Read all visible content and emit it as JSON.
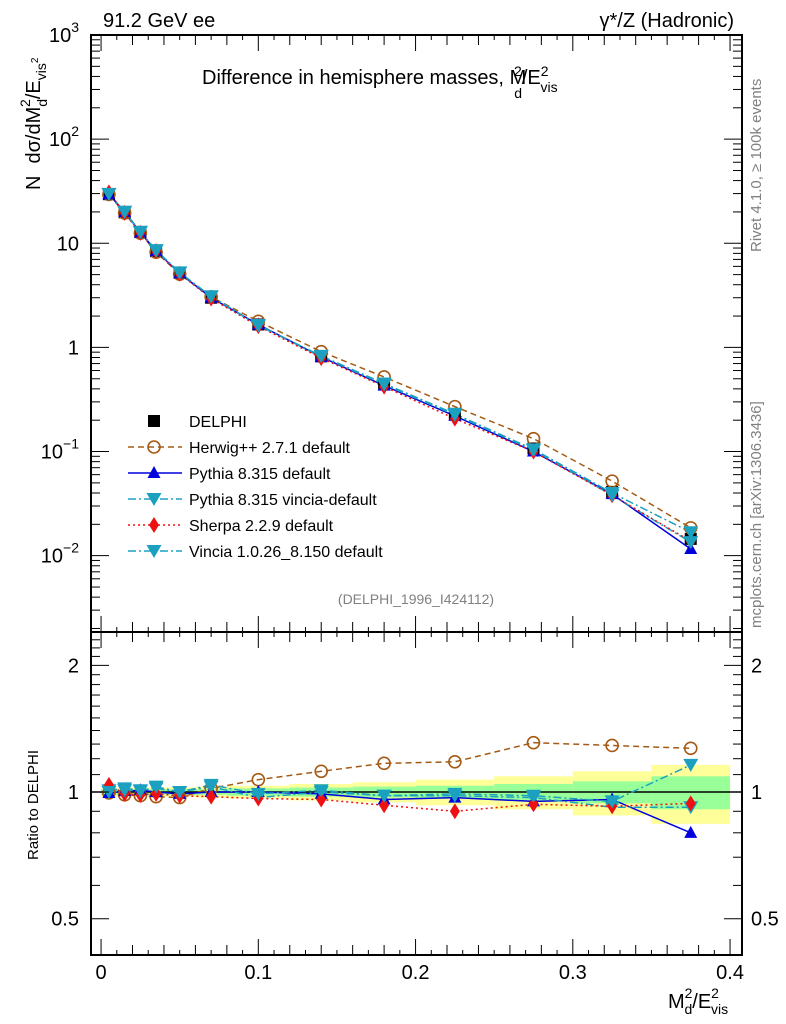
{
  "chart_data": [
    {
      "type": "line",
      "panel": "main",
      "title": "Difference in hemisphere masses, M_d^2/E_vis^2",
      "top_left_label": "91.2 GeV ee",
      "top_right_label": "γ*/Z (Hadronic)",
      "analysis_label": "(DELPHI_1996_I424112)",
      "side_label_top": "Rivet 4.1.0, ≥ 100k events",
      "side_label_bottom": "mcplots.cern.ch [arXiv:1306.3436]",
      "ylabel": "N  dσ/dM_d^2/E_vis^2",
      "yscale": "log",
      "ylim": [
        0.00185,
        1000
      ],
      "xlim": [
        -0.0064,
        0.4076
      ],
      "ytick_labels": [
        "10^-2",
        "10^-1",
        "1",
        "10",
        "10^2",
        "10^3"
      ],
      "ytick_values": [
        0.01,
        0.1,
        1,
        10,
        100,
        1000
      ],
      "legend_position": "middle-left",
      "x": [
        0.005,
        0.015,
        0.025,
        0.035,
        0.05,
        0.07,
        0.1,
        0.14,
        0.18,
        0.225,
        0.275,
        0.325,
        0.375
      ],
      "series": [
        {
          "name": "DELPHI",
          "color": "#000000",
          "marker": "square",
          "line": "none",
          "values": [
            29.6,
            19.8,
            12.8,
            8.4,
            5.2,
            3.0,
            1.66,
            0.82,
            0.45,
            0.23,
            0.107,
            0.041,
            0.0145
          ]
        },
        {
          "name": "Herwig++ 2.7.1 default",
          "color": "#a55a14",
          "marker": "open-circle",
          "line": "dashed",
          "values": [
            29.4,
            19.5,
            12.5,
            8.2,
            5.05,
            3.05,
            1.78,
            0.91,
            0.52,
            0.27,
            0.133,
            0.052,
            0.0185
          ]
        },
        {
          "name": "Pythia 8.315 default",
          "color": "#0000dd",
          "marker": "triangle-up",
          "line": "solid",
          "values": [
            29.5,
            19.9,
            12.7,
            8.4,
            5.15,
            3.0,
            1.66,
            0.81,
            0.43,
            0.22,
            0.1,
            0.039,
            0.0116
          ]
        },
        {
          "name": "Pythia 8.315 vincia-default",
          "color": "#1ba0c0",
          "marker": "triangle-down",
          "line": "dashdot",
          "values": [
            29.8,
            20.1,
            12.9,
            8.6,
            5.25,
            3.08,
            1.62,
            0.82,
            0.44,
            0.225,
            0.103,
            0.038,
            0.0135
          ]
        },
        {
          "name": "Sherpa 2.2.9 default",
          "color": "#ee1111",
          "marker": "diamond",
          "line": "dotted",
          "values": [
            30.8,
            19.6,
            12.6,
            8.4,
            5.1,
            2.95,
            1.6,
            0.79,
            0.42,
            0.207,
            0.1,
            0.038,
            0.0138
          ]
        },
        {
          "name": "Vincia 1.0.26_8.150 default",
          "color": "#1ba0c0",
          "marker": "triangle-down",
          "line": "dashdot",
          "values": [
            29.7,
            20.0,
            12.8,
            8.5,
            5.2,
            3.1,
            1.64,
            0.83,
            0.45,
            0.23,
            0.105,
            0.04,
            0.0168
          ]
        }
      ]
    },
    {
      "type": "line",
      "panel": "ratio",
      "ylabel": "Ratio to DELPHI",
      "xlabel": "M_d^2/E_vis^2",
      "yscale": "log",
      "ylim": [
        0.41,
        2.4
      ],
      "xlim": [
        -0.0064,
        0.4076
      ],
      "ytick_labels": [
        "0.5",
        "1",
        "2"
      ],
      "ytick_values": [
        0.5,
        1,
        2
      ],
      "xtick_labels": [
        "0",
        "0.1",
        "0.2",
        "0.3",
        "0.4"
      ],
      "xtick_values": [
        0,
        0.1,
        0.2,
        0.3,
        0.4
      ],
      "x": [
        0.005,
        0.015,
        0.025,
        0.035,
        0.05,
        0.07,
        0.1,
        0.14,
        0.18,
        0.225,
        0.275,
        0.325,
        0.375
      ],
      "bin_edges": [
        0,
        0.01,
        0.02,
        0.03,
        0.04,
        0.06,
        0.08,
        0.12,
        0.16,
        0.2,
        0.25,
        0.3,
        0.35,
        0.4
      ],
      "band_stat": [
        0.015,
        0.015,
        0.015,
        0.015,
        0.015,
        0.015,
        0.02,
        0.025,
        0.03,
        0.035,
        0.045,
        0.06,
        0.09
      ],
      "band_total": [
        0.025,
        0.025,
        0.025,
        0.025,
        0.025,
        0.03,
        0.035,
        0.045,
        0.055,
        0.07,
        0.09,
        0.12,
        0.16
      ],
      "band_colors": {
        "inner": "#99ff99",
        "outer": "#ffff99"
      },
      "series": [
        {
          "name": "Herwig++ 2.7.1 default",
          "color": "#a55a14",
          "marker": "open-circle",
          "line": "dashed",
          "values": [
            0.995,
            0.985,
            0.98,
            0.975,
            0.97,
            1.02,
            1.07,
            1.12,
            1.17,
            1.18,
            1.31,
            1.29,
            1.27
          ]
        },
        {
          "name": "Pythia 8.315 default",
          "color": "#0000dd",
          "marker": "triangle-up",
          "line": "solid",
          "values": [
            0.995,
            1.005,
            1.01,
            1.0,
            0.99,
            1.0,
            1.0,
            0.99,
            0.96,
            0.97,
            0.95,
            0.96,
            0.8
          ]
        },
        {
          "name": "Pythia 8.315 vincia-default",
          "color": "#1ba0c0",
          "marker": "triangle-down",
          "line": "dashdot",
          "values": [
            1.01,
            1.02,
            1.01,
            1.02,
            1.0,
            1.03,
            0.97,
            1.0,
            0.98,
            0.98,
            0.97,
            0.92,
            0.92
          ]
        },
        {
          "name": "Sherpa 2.2.9 default",
          "color": "#ee1111",
          "marker": "diamond",
          "line": "dotted",
          "values": [
            1.04,
            0.99,
            0.985,
            0.99,
            0.98,
            0.975,
            0.965,
            0.96,
            0.93,
            0.9,
            0.935,
            0.925,
            0.94
          ]
        },
        {
          "name": "Vincia 1.0.26_8.150 default",
          "color": "#1ba0c0",
          "marker": "triangle-down",
          "line": "dashdot",
          "values": [
            1.0,
            1.01,
            1.005,
            1.03,
            1.0,
            1.04,
            0.99,
            1.01,
            0.98,
            0.99,
            0.98,
            0.95,
            1.16
          ]
        }
      ]
    }
  ]
}
